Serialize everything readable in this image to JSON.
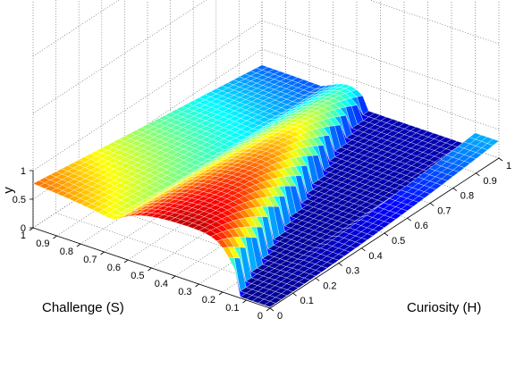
{
  "chart_data": {
    "type": "surface",
    "colormap": "jet",
    "zlabel": "y",
    "ylabel": "Challenge (S)",
    "xlabel": "Curiosity (H)",
    "x_range": [
      0,
      1
    ],
    "y_range": [
      0,
      1
    ],
    "z_range": [
      0,
      1
    ],
    "x_ticks": [
      "0",
      "0.1",
      "0.2",
      "0.3",
      "0.4",
      "0.5",
      "0.6",
      "0.7",
      "0.8",
      "0.9",
      "1"
    ],
    "y_ticks": [
      "0",
      "0.1",
      "0.2",
      "0.3",
      "0.4",
      "0.5",
      "0.6",
      "0.7",
      "0.8",
      "0.9",
      "1"
    ],
    "z_ticks": [
      "0",
      "0.5",
      "1"
    ],
    "grid": true,
    "surface_samples": {
      "note_axes": "rows = Challenge (S) from 0 to 1 in steps of 0.25, columns = Curiosity (H) from 0 to 1 in steps of 0.25",
      "values": [
        [
          0.02,
          0.03,
          0.04,
          0.05,
          0.06
        ],
        [
          0.45,
          0.03,
          0.04,
          0.05,
          0.06
        ],
        [
          0.55,
          0.92,
          0.06,
          0.07,
          0.08
        ],
        [
          0.5,
          0.4,
          0.2,
          0.12,
          0.1
        ],
        [
          0.6,
          0.3,
          0.25,
          0.2,
          0.15
        ]
      ]
    }
  }
}
